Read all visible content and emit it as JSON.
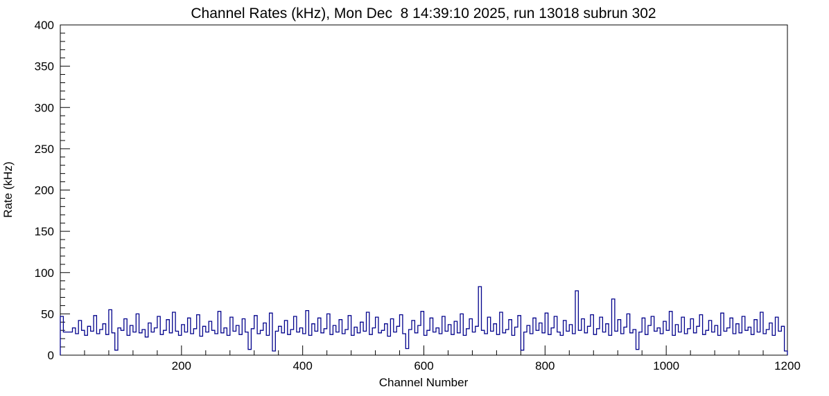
{
  "chart_data": {
    "type": "line",
    "title": "Channel Rates (kHz), Mon Dec  8 14:39:10 2025, run 13018 subrun 302",
    "xlabel": "Channel Number",
    "ylabel": "Rate (kHz)",
    "xlim": [
      0,
      1200
    ],
    "ylim": [
      0,
      400
    ],
    "x_major_ticks": [
      200,
      400,
      600,
      800,
      1000,
      1200
    ],
    "x_minor_step": 40,
    "y_major_ticks": [
      0,
      50,
      100,
      150,
      200,
      250,
      300,
      350,
      400
    ],
    "y_minor_step": 10,
    "line_color": "#00008b",
    "x_start": 0,
    "sample_step": 5,
    "values": [
      47,
      28,
      28,
      28,
      33,
      26,
      42,
      30,
      24,
      35,
      29,
      48,
      26,
      31,
      38,
      25,
      55,
      27,
      6,
      33,
      30,
      44,
      24,
      36,
      28,
      50,
      27,
      31,
      22,
      39,
      28,
      33,
      47,
      25,
      30,
      43,
      27,
      52,
      29,
      24,
      37,
      28,
      45,
      26,
      32,
      49,
      23,
      35,
      28,
      41,
      30,
      26,
      53,
      27,
      33,
      24,
      46,
      29,
      36,
      25,
      44,
      28,
      7,
      32,
      48,
      26,
      30,
      39,
      24,
      51,
      5,
      29,
      35,
      27,
      42,
      25,
      31,
      47,
      28,
      33,
      26,
      54,
      24,
      38,
      29,
      45,
      27,
      32,
      50,
      25,
      36,
      28,
      43,
      26,
      31,
      48,
      24,
      34,
      27,
      40,
      29,
      52,
      25,
      33,
      46,
      27,
      30,
      38,
      23,
      44,
      28,
      35,
      49,
      26,
      8,
      31,
      42,
      27,
      36,
      53,
      24,
      30,
      45,
      28,
      33,
      26,
      47,
      29,
      37,
      25,
      41,
      27,
      50,
      24,
      32,
      44,
      28,
      35,
      83,
      30,
      26,
      46,
      29,
      38,
      25,
      52,
      27,
      31,
      43,
      24,
      34,
      48,
      6,
      28,
      36,
      26,
      45,
      30,
      39,
      27,
      51,
      25,
      33,
      47,
      28,
      24,
      42,
      29,
      37,
      26,
      78,
      30,
      44,
      27,
      35,
      49,
      25,
      32,
      46,
      28,
      38,
      24,
      68,
      29,
      43,
      26,
      34,
      50,
      27,
      31,
      7,
      28,
      45,
      25,
      36,
      47,
      29,
      33,
      26,
      41,
      30,
      53,
      24,
      37,
      28,
      46,
      26,
      32,
      44,
      27,
      35,
      49,
      25,
      30,
      42,
      28,
      36,
      24,
      51,
      29,
      33,
      45,
      26,
      38,
      27,
      47,
      30,
      34,
      25,
      43,
      28,
      52,
      26,
      31,
      39,
      24,
      46,
      29,
      35,
      5
    ],
    "notable_peaks": [
      {
        "channel": 690,
        "rate": 83
      },
      {
        "channel": 850,
        "rate": 78
      },
      {
        "channel": 910,
        "rate": 68
      }
    ],
    "legend": "none",
    "grid": "off"
  }
}
